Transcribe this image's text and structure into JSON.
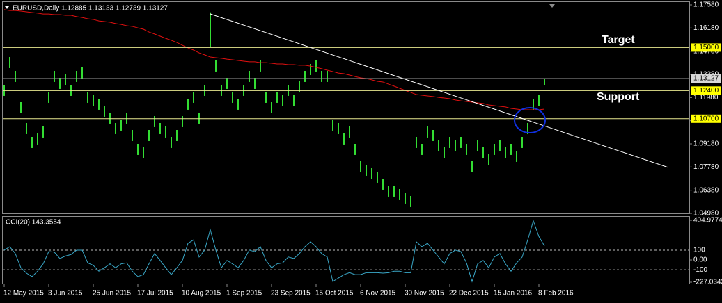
{
  "chart_data": [
    {
      "type": "hl",
      "title": "EURUSD,Daily 1.12885 1.13133 1.12739 1.13127",
      "color": "#33dd33",
      "categories": [
        "12 May 2015",
        null,
        null,
        null,
        null,
        null,
        null,
        null,
        "3 Jun 2015",
        null,
        null,
        null,
        null,
        null,
        null,
        null,
        "25 Jun 2015",
        null,
        null,
        null,
        null,
        null,
        null,
        null,
        "17 Jul 2015",
        null,
        null,
        null,
        null,
        null,
        null,
        null,
        "10 Aug 2015",
        null,
        null,
        null,
        null,
        null,
        null,
        null,
        "1 Sep 2015",
        null,
        null,
        null,
        null,
        null,
        null,
        null,
        "23 Sep 2015",
        null,
        null,
        null,
        null,
        null,
        null,
        null,
        "15 Oct 2015",
        null,
        null,
        null,
        null,
        null,
        null,
        null,
        "6 Nov 2015",
        null,
        null,
        null,
        null,
        null,
        null,
        null,
        "30 Nov 2015",
        null,
        null,
        null,
        null,
        null,
        null,
        null,
        "22 Dec 2015",
        null,
        null,
        null,
        null,
        null,
        null,
        null,
        "15 Jan 2016",
        null,
        null,
        null,
        null,
        null,
        null,
        null,
        "8 Feb 2016",
        null
      ],
      "high": [
        1.1275,
        1.1443,
        1.1359,
        1.117,
        1.1044,
        1.096,
        1.0981,
        1.1023,
        1.1233,
        1.1359,
        1.1317,
        1.1338,
        1.1275,
        1.1359,
        1.138,
        1.1233,
        1.1212,
        1.1191,
        1.1149,
        1.1107,
        1.1044,
        1.1065,
        1.1107,
        1.1002,
        1.0918,
        1.0897,
        1.1002,
        1.1086,
        1.1044,
        1.1023,
        1.096,
        1.1002,
        1.1086,
        1.1191,
        1.1233,
        1.1107,
        1.1275,
        1.1713,
        1.1422,
        1.1275,
        1.1317,
        1.1233,
        1.1191,
        1.1275,
        1.1359,
        1.1317,
        1.1422,
        1.1233,
        1.117,
        1.1233,
        1.1212,
        1.1275,
        1.1212,
        1.1296,
        1.1359,
        1.1401,
        1.1422,
        1.1359,
        1.1359,
        1.1065,
        1.1044,
        1.0981,
        1.1023,
        1.0918,
        1.0813,
        1.0792,
        1.0771,
        1.075,
        1.0708,
        1.0666,
        1.0666,
        1.0645,
        1.0624,
        1.0603,
        1.096,
        1.0918,
        1.1023,
        1.1002,
        1.0939,
        1.0897,
        1.096,
        1.0939,
        1.096,
        1.0918,
        1.0813,
        1.0939,
        1.0897,
        1.0855,
        1.0918,
        1.0939,
        1.0897,
        1.0918,
        1.0876,
        1.096,
        1.1044,
        1.1191,
        1.1212,
        1.1313
      ],
      "low": [
        1.1208,
        1.1376,
        1.1292,
        1.1103,
        1.0977,
        1.0893,
        1.0914,
        1.0956,
        1.1166,
        1.1292,
        1.125,
        1.1271,
        1.1208,
        1.1292,
        1.1313,
        1.1166,
        1.1145,
        1.1124,
        1.1082,
        1.104,
        1.0977,
        1.0998,
        1.104,
        1.0935,
        1.0851,
        1.083,
        1.0935,
        1.1019,
        1.0977,
        1.0956,
        1.0893,
        1.0935,
        1.1019,
        1.1124,
        1.1166,
        1.104,
        1.1208,
        1.1502,
        1.1355,
        1.1208,
        1.125,
        1.1166,
        1.1124,
        1.1208,
        1.1292,
        1.125,
        1.1355,
        1.1166,
        1.1103,
        1.1166,
        1.1145,
        1.1208,
        1.1145,
        1.1229,
        1.1292,
        1.1334,
        1.1355,
        1.1292,
        1.1292,
        1.0998,
        1.0977,
        1.0914,
        1.0956,
        1.0851,
        1.0746,
        1.0725,
        1.0704,
        1.0683,
        1.0641,
        1.0599,
        1.0599,
        1.0578,
        1.0557,
        1.0536,
        1.0893,
        1.0851,
        1.0956,
        1.0935,
        1.0872,
        1.083,
        1.0893,
        1.0872,
        1.0893,
        1.0851,
        1.0746,
        1.0872,
        1.083,
        1.0788,
        1.0851,
        1.0872,
        1.083,
        1.0851,
        1.0809,
        1.0893,
        1.0977,
        1.1124,
        1.1145,
        1.1274
      ],
      "ma": {
        "color": "#e01010",
        "values": [
          1.1729,
          1.1724,
          1.1724,
          1.172,
          1.1716,
          1.1712,
          1.1708,
          1.1703,
          1.1703,
          1.1699,
          1.1699,
          1.1695,
          1.1695,
          1.1687,
          1.1682,
          1.1674,
          1.167,
          1.1661,
          1.1657,
          1.1653,
          1.1645,
          1.164,
          1.1632,
          1.1628,
          1.1619,
          1.1611,
          1.1594,
          1.1582,
          1.1569,
          1.1556,
          1.1544,
          1.1531,
          1.1514,
          1.1498,
          1.1485,
          1.1468,
          1.1456,
          1.1443,
          1.1439,
          1.1435,
          1.143,
          1.1426,
          1.1422,
          1.1418,
          1.1414,
          1.1414,
          1.1409,
          1.1409,
          1.1405,
          1.1401,
          1.1401,
          1.1397,
          1.1397,
          1.1393,
          1.1393,
          1.1388,
          1.138,
          1.1372,
          1.1363,
          1.1355,
          1.1346,
          1.1342,
          1.1334,
          1.1325,
          1.1317,
          1.1313,
          1.1305,
          1.1296,
          1.1292,
          1.1279,
          1.1267,
          1.1254,
          1.1241,
          1.1229,
          1.1216,
          1.1212,
          1.1208,
          1.1204,
          1.1199,
          1.1195,
          1.1191,
          1.1183,
          1.1178,
          1.1174,
          1.117,
          1.1166,
          1.1162,
          1.1153,
          1.1149,
          1.1145,
          1.1141,
          1.1132,
          1.1128,
          1.1124,
          1.1124,
          1.1124,
          1.1124,
          1.1128
        ]
      },
      "ylim": [
        1.0498,
        1.1758
      ],
      "yticks": [
        {
          "value": 1.1758,
          "label": "1.17580"
        },
        {
          "value": 1.1618,
          "label": "1.16180"
        },
        {
          "value": 1.1478,
          "label": "1.14780"
        },
        {
          "value": 1.1338,
          "label": "1.13380"
        },
        {
          "value": 1.1198,
          "label": "1.11980"
        },
        {
          "value": 1.1058,
          "label": "1.10580"
        },
        {
          "value": 1.0918,
          "label": "1.09180"
        },
        {
          "value": 1.0778,
          "label": "1.07780"
        },
        {
          "value": 1.0638,
          "label": "1.06380"
        },
        {
          "value": 1.0498,
          "label": "1.04980"
        }
      ],
      "levels": [
        {
          "value": 1.15,
          "label": "1.15000"
        },
        {
          "value": 1.124,
          "label": "1.12400"
        },
        {
          "value": 1.107,
          "label": "1.10700"
        }
      ],
      "level_color": "#e8e890",
      "last_price": {
        "value": 1.13127,
        "label": "1.13127",
        "color": "#9a9a9a"
      },
      "annotations": [
        "Target",
        "Support"
      ]
    },
    {
      "type": "line",
      "title": "CCI(20) 143.3554",
      "series": [
        {
          "color": "#3aa8c8",
          "values": [
            100,
            135,
            65,
            -80,
            -135,
            -170,
            -115,
            -40,
            85,
            80,
            15,
            40,
            55,
            100,
            100,
            -30,
            -55,
            -115,
            -80,
            -40,
            -80,
            -40,
            -30,
            -115,
            -170,
            -150,
            -40,
            65,
            -5,
            -80,
            -150,
            -80,
            -5,
            170,
            205,
            30,
            100,
            310,
            100,
            -80,
            -5,
            -40,
            -80,
            -5,
            100,
            85,
            135,
            -5,
            -80,
            -40,
            -30,
            30,
            15,
            65,
            135,
            185,
            135,
            65,
            30,
            -220,
            -185,
            -150,
            -130,
            -150,
            -150,
            -130,
            -130,
            -130,
            -135,
            -130,
            -115,
            -115,
            -130,
            -130,
            185,
            135,
            170,
            100,
            30,
            -40,
            65,
            100,
            85,
            -30,
            -220,
            -40,
            -5,
            -80,
            30,
            65,
            -40,
            -115,
            -30,
            30,
            205,
            400,
            240,
            143.3554
          ]
        }
      ],
      "ylim": [
        -227.0343,
        404.9774
      ],
      "yticks": [
        404.9774,
        100,
        {
          "value": 0,
          "label": "0.00"
        },
        -100,
        -227.0343
      ],
      "dashed": [
        100,
        -100
      ]
    }
  ]
}
